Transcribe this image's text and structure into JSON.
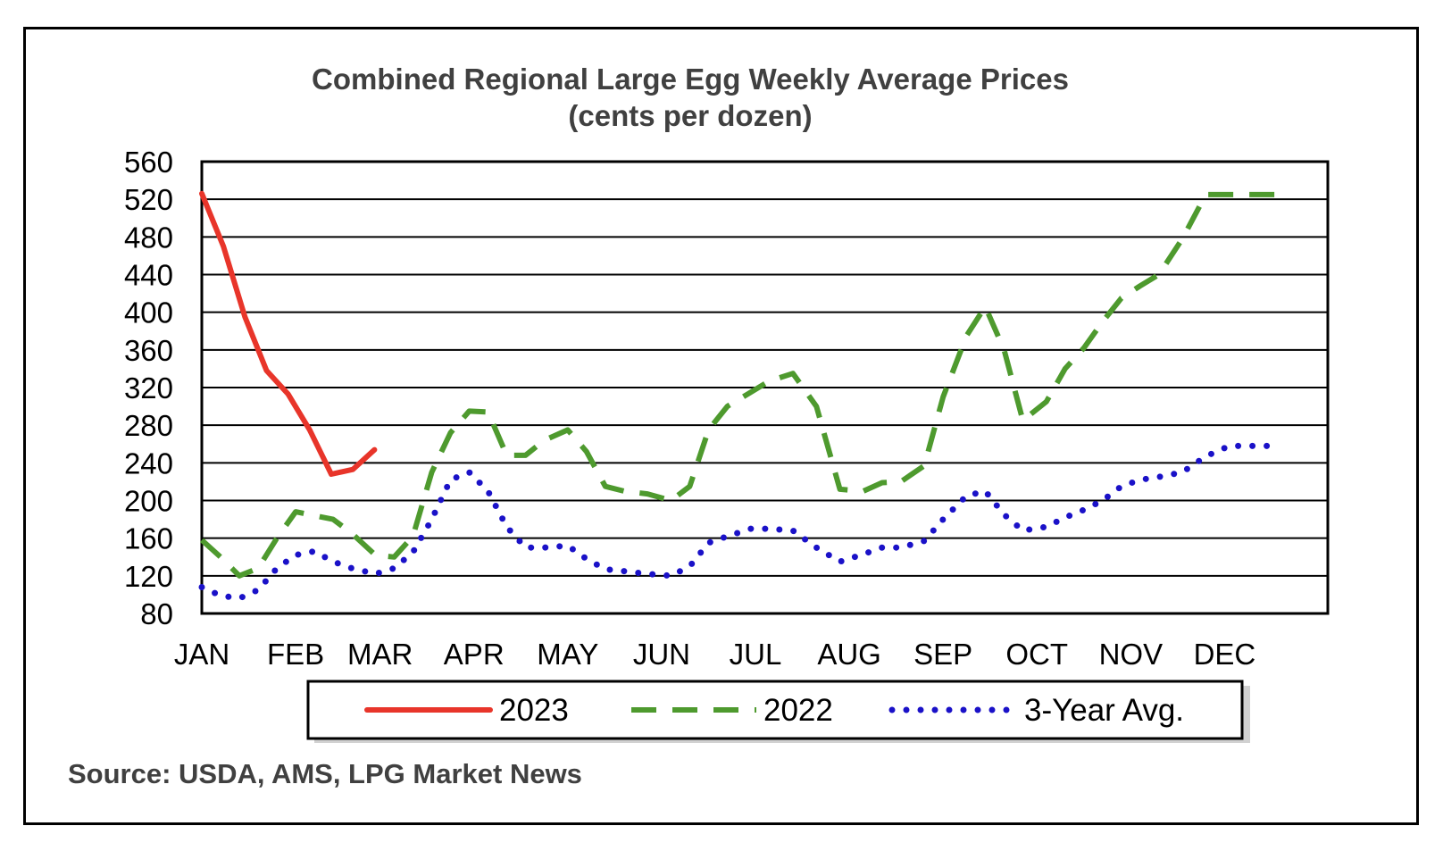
{
  "chart_data": {
    "type": "line",
    "title": "Combined Regional Large Egg Weekly Average Prices",
    "subtitle": "(cents per dozen)",
    "source": "Source: USDA, AMS, LPG  Market News",
    "ylim": [
      80,
      560
    ],
    "yticks": [
      80,
      120,
      160,
      200,
      240,
      280,
      320,
      360,
      400,
      440,
      480,
      520,
      560
    ],
    "xlim": [
      0,
      12
    ],
    "categories": [
      "JAN",
      "FEB",
      "MAR",
      "APR",
      "MAY",
      "JUN",
      "JUL",
      "AUG",
      "SEP",
      "OCT",
      "NOV",
      "DEC"
    ],
    "grid": "horizontal",
    "legend_position": "bottom",
    "series": [
      {
        "name": "2023",
        "color": "#E8352A",
        "style": "solid",
        "x": [
          0.0,
          0.23,
          0.46,
          0.69,
          0.92,
          1.15,
          1.38,
          1.61,
          1.84
        ],
        "values": [
          526,
          470,
          395,
          338,
          313,
          275,
          228,
          233,
          254
        ]
      },
      {
        "name": "2022",
        "color": "#4E9A2E",
        "style": "dashed",
        "x": [
          0.0,
          0.2,
          0.4,
          0.6,
          0.8,
          1.0,
          1.2,
          1.4,
          1.6,
          1.85,
          2.05,
          2.25,
          2.45,
          2.65,
          2.85,
          3.05,
          3.25,
          3.45,
          3.65,
          3.9,
          4.1,
          4.3,
          4.5,
          4.75,
          5.0,
          5.2,
          5.4,
          5.6,
          5.85,
          6.05,
          6.3,
          6.55,
          6.8,
          7.05,
          7.25,
          7.45,
          7.7,
          7.9,
          8.15,
          8.35,
          8.55,
          8.75,
          9.0,
          9.2,
          9.4,
          9.6,
          9.8,
          10.0,
          10.2,
          10.45,
          10.7,
          10.95,
          11.15,
          11.4,
          11.6
        ],
        "values": [
          158,
          140,
          120,
          128,
          160,
          188,
          184,
          180,
          165,
          142,
          140,
          162,
          230,
          272,
          295,
          294,
          248,
          248,
          264,
          275,
          252,
          215,
          210,
          207,
          200,
          215,
          275,
          300,
          315,
          327,
          335,
          300,
          212,
          210,
          219,
          220,
          237,
          310,
          375,
          406,
          360,
          285,
          305,
          340,
          362,
          390,
          415,
          428,
          440,
          478,
          525,
          525,
          525,
          525,
          525
        ]
      },
      {
        "name": "3-Year Avg.",
        "color": "#1A11C8",
        "style": "dotted",
        "x": [
          0.0,
          0.2,
          0.4,
          0.6,
          0.8,
          1.0,
          1.2,
          1.4,
          1.6,
          1.85,
          2.05,
          2.25,
          2.45,
          2.65,
          2.85,
          3.05,
          3.25,
          3.45,
          3.65,
          3.9,
          4.1,
          4.3,
          4.5,
          4.75,
          5.0,
          5.2,
          5.4,
          5.6,
          5.85,
          6.05,
          6.3,
          6.55,
          6.8,
          7.05,
          7.25,
          7.45,
          7.7,
          7.9,
          8.15,
          8.35,
          8.55,
          8.75,
          9.0,
          9.2,
          9.4,
          9.6,
          9.8,
          10.0,
          10.2,
          10.45,
          10.7,
          10.95,
          11.15,
          11.35
        ],
        "values": [
          108,
          99,
          96,
          105,
          128,
          142,
          146,
          135,
          128,
          122,
          128,
          145,
          180,
          222,
          230,
          210,
          172,
          150,
          150,
          152,
          138,
          127,
          125,
          122,
          120,
          130,
          155,
          162,
          170,
          170,
          168,
          150,
          135,
          143,
          150,
          150,
          157,
          180,
          205,
          210,
          185,
          168,
          172,
          182,
          190,
          200,
          215,
          222,
          225,
          230,
          247,
          258,
          258,
          258
        ]
      }
    ]
  }
}
